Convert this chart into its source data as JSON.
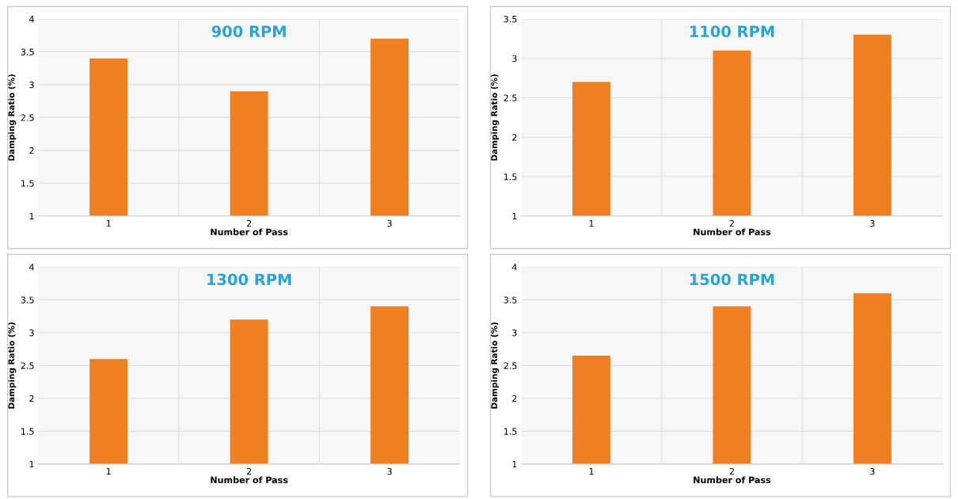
{
  "chart_data": [
    {
      "type": "bar",
      "title": "900 RPM",
      "xlabel": "Number of Pass",
      "ylabel": "Damping Ratio (%)",
      "categories": [
        "1",
        "2",
        "3"
      ],
      "values": [
        3.4,
        2.9,
        3.7
      ],
      "color": "#f07f22",
      "ylim": [
        1,
        4
      ],
      "yticks": [
        1,
        1.5,
        2,
        2.5,
        3,
        3.5,
        4
      ],
      "grid": "y"
    },
    {
      "type": "bar",
      "title": "1100 RPM",
      "xlabel": "Number of Pass",
      "ylabel": "Damping Ratio (%)",
      "categories": [
        "1",
        "2",
        "3"
      ],
      "values": [
        2.7,
        3.1,
        3.3
      ],
      "color": "#f07f22",
      "ylim": [
        1,
        3.5
      ],
      "yticks": [
        1,
        1.5,
        2,
        2.5,
        3,
        3.5
      ],
      "grid": "y"
    },
    {
      "type": "bar",
      "title": "1300 RPM",
      "xlabel": "Number of Pass",
      "ylabel": "Damping Ratio (%)",
      "categories": [
        "1",
        "2",
        "3"
      ],
      "values": [
        2.6,
        3.2,
        3.4
      ],
      "color": "#f07f22",
      "ylim": [
        1,
        4
      ],
      "yticks": [
        1,
        1.5,
        2,
        2.5,
        3,
        3.5,
        4
      ],
      "grid": "y"
    },
    {
      "type": "bar",
      "title": "1500 RPM",
      "xlabel": "Number of Pass",
      "ylabel": "Damping Ratio (%)",
      "categories": [
        "1",
        "2",
        "3"
      ],
      "values": [
        2.65,
        3.4,
        3.6
      ],
      "color": "#f07f22",
      "ylim": [
        1,
        4
      ],
      "yticks": [
        1,
        1.5,
        2,
        2.5,
        3,
        3.5,
        4
      ],
      "grid": "y"
    }
  ]
}
